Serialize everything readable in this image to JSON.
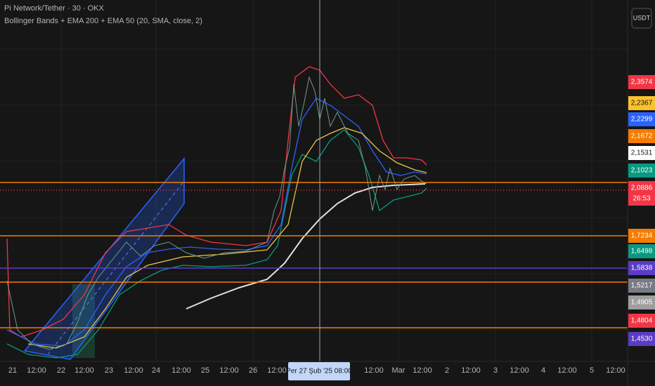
{
  "header": {
    "symbol": "Pi Network/Tether · 30 · OKX",
    "indicator": "Bollinger Bands + EMA 200 + EMA 50 (20, SMA, close, 2)",
    "currency": "USDT"
  },
  "price_labels": [
    {
      "text": "2,3574",
      "color": "#f23645"
    },
    {
      "text": "2,2367",
      "color": "#fbc02d"
    },
    {
      "text": "2,2299",
      "color": "#2962ff"
    },
    {
      "text": "2,1672",
      "color": "#f57c00"
    },
    {
      "text": "2,1531",
      "color": "#ffffff"
    },
    {
      "text": "2,1023",
      "color": "#089981"
    },
    {
      "text": "2,0886",
      "color": "#f23645"
    },
    {
      "text": "26:53",
      "color": "#f23645"
    },
    {
      "text": "1,7234",
      "color": "#f57c00"
    },
    {
      "text": "1,6498",
      "color": "#089981"
    },
    {
      "text": "1,5838",
      "color": "#5b3cc4"
    },
    {
      "text": "1,5217",
      "color": "#787b86"
    },
    {
      "text": "1,4905",
      "color": "#9e9e9e"
    },
    {
      "text": "1,4804",
      "color": "#f23645"
    },
    {
      "text": "1,4530",
      "color": "#5b3cc4"
    }
  ],
  "time_labels": [
    "21",
    "12:00",
    "22",
    "12:00",
    "23",
    "12:00",
    "24",
    "12:00",
    "25",
    "12:00",
    "26",
    "12:00",
    "12:00",
    "Mar",
    "12:00",
    "2",
    "12:00",
    "3",
    "12:00",
    "4",
    "12:00",
    "5",
    "12:00"
  ],
  "crosshair_label": "Per 27 Şub '25   08:00"
}
